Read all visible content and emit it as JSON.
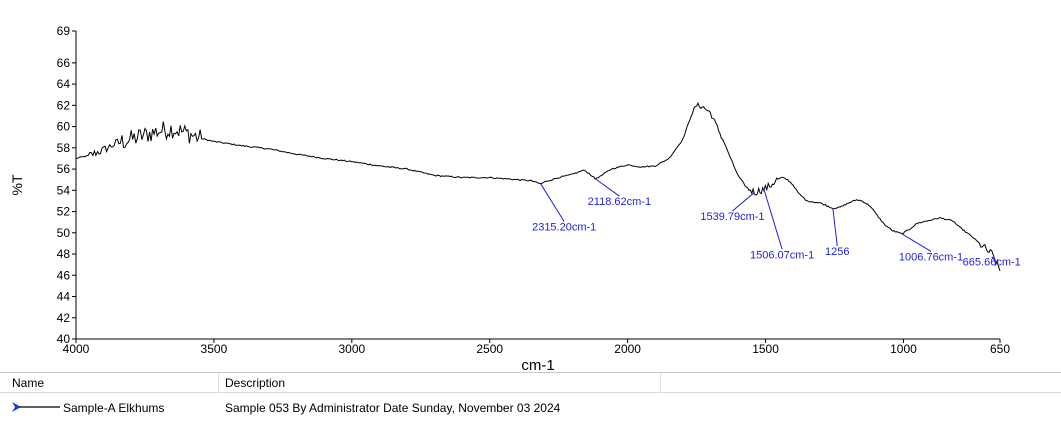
{
  "chart_data": {
    "type": "line",
    "xlabel": "cm-1",
    "ylabel": "%T",
    "xlim": [
      4000,
      650
    ],
    "ylim": [
      40,
      69
    ],
    "x_ticks": [
      "4000",
      "3500",
      "3000",
      "2500",
      "2000",
      "1500",
      "1000",
      "650"
    ],
    "y_ticks": [
      "40",
      "42",
      "44",
      "46",
      "48",
      "50",
      "52",
      "54",
      "56",
      "58",
      "60",
      "62",
      "64",
      "66",
      "69"
    ],
    "series": [
      {
        "name": "Sample-A Elkhums",
        "color": "#000000",
        "x": [
          4000,
          3950,
          3900,
          3850,
          3800,
          3750,
          3700,
          3650,
          3600,
          3550,
          3500,
          3400,
          3300,
          3200,
          3100,
          3000,
          2900,
          2800,
          2700,
          2600,
          2500,
          2400,
          2350,
          2315,
          2300,
          2250,
          2200,
          2160,
          2140,
          2118,
          2100,
          2060,
          2000,
          1950,
          1900,
          1850,
          1800,
          1770,
          1750,
          1730,
          1700,
          1680,
          1650,
          1620,
          1600,
          1570,
          1540,
          1520,
          1506,
          1480,
          1460,
          1440,
          1420,
          1400,
          1380,
          1350,
          1300,
          1256,
          1230,
          1200,
          1170,
          1150,
          1120,
          1100,
          1070,
          1040,
          1006,
          980,
          950,
          900,
          870,
          850,
          820,
          800,
          780,
          750,
          720,
          700,
          680,
          665,
          650
        ],
        "y": [
          57.0,
          57.3,
          57.8,
          58.5,
          58.8,
          59.2,
          59.6,
          59.8,
          59.4,
          58.9,
          58.6,
          58.2,
          57.9,
          57.4,
          57.0,
          56.7,
          56.3,
          56.0,
          55.4,
          55.2,
          55.2,
          55.0,
          54.9,
          54.6,
          54.8,
          55.2,
          55.5,
          55.9,
          55.6,
          55.1,
          55.3,
          56.0,
          56.4,
          56.2,
          56.3,
          57.0,
          58.8,
          61.0,
          62.0,
          61.9,
          61.3,
          60.2,
          58.5,
          56.6,
          55.4,
          54.3,
          53.8,
          54.0,
          54.1,
          54.5,
          55.0,
          55.2,
          55.0,
          54.5,
          53.7,
          53.0,
          52.8,
          52.3,
          52.4,
          52.8,
          53.1,
          53.0,
          52.5,
          51.8,
          50.8,
          50.2,
          49.9,
          50.3,
          50.9,
          51.2,
          51.4,
          51.3,
          51.1,
          50.6,
          50.2,
          49.6,
          48.9,
          48.4,
          48.0,
          47.3,
          46.4
        ]
      }
    ],
    "noise": [
      {
        "from": 3850,
        "to": 3550,
        "amp": 0.9
      },
      {
        "from": 3950,
        "to": 3850,
        "amp": 0.4
      },
      {
        "from": 1760,
        "to": 1660,
        "amp": 0.25
      },
      {
        "from": 1560,
        "to": 1460,
        "amp": 0.35
      },
      {
        "from": 720,
        "to": 650,
        "amp": 0.4
      }
    ],
    "annotations": [
      {
        "label": "2315.20cm-1",
        "x": 2315,
        "y": 54.6,
        "label_x": 2230,
        "label_y": 50.2
      },
      {
        "label": "2118.62cm-1",
        "x": 2118,
        "y": 55.1,
        "label_x": 2030,
        "label_y": 52.6
      },
      {
        "label": "1539.79cm-1",
        "x": 1540,
        "y": 53.8,
        "label_x": 1620,
        "label_y": 51.2
      },
      {
        "label": "1506.07cm-1",
        "x": 1506,
        "y": 54.1,
        "label_x": 1440,
        "label_y": 47.6
      },
      {
        "label": "1256",
        "x": 1256,
        "y": 52.3,
        "label_x": 1240,
        "label_y": 47.9
      },
      {
        "label": "1006.76cm-1",
        "x": 1006,
        "y": 49.9,
        "label_x": 900,
        "label_y": 47.4
      },
      {
        "label": "665.66cm-1",
        "x": 665,
        "y": 47.3,
        "label_x": 680,
        "label_y": 46.9
      }
    ],
    "annotation_color": "#1f1fe0",
    "grid": false
  },
  "legend": {
    "columns": {
      "name": "Name",
      "description": "Description"
    },
    "rows": [
      {
        "name": "Sample-A Elkhums",
        "description": "Sample 053 By Administrator Date Sunday, November 03 2024",
        "marker_color": "#1f3fd0"
      }
    ]
  }
}
